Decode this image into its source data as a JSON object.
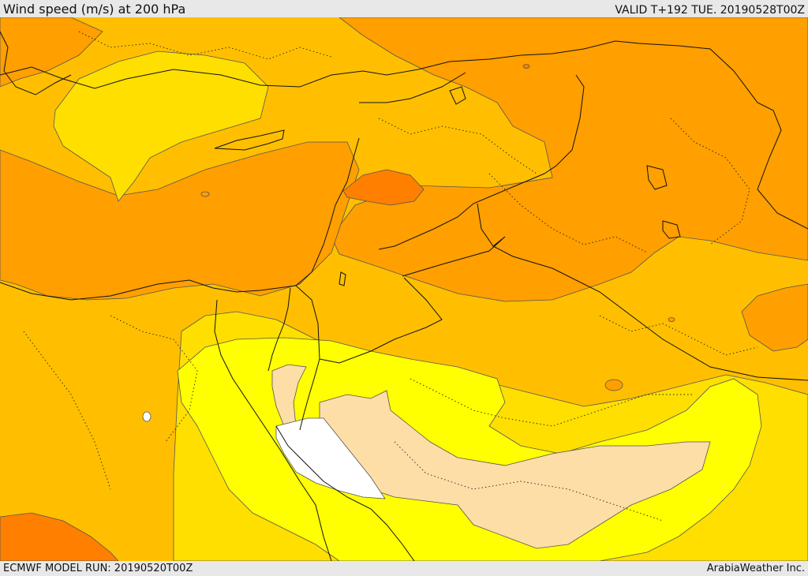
{
  "header": {
    "title": "Wind speed (m/s) at 200 hPa",
    "valid": "VALID T+192 TUE. 20190528T00Z"
  },
  "footer": {
    "model_run": "ECMWF MODEL RUN: 20190520T00Z",
    "credit": "ArabiaWeather Inc."
  },
  "map": {
    "colors": {
      "background": "#e8e8e8",
      "land_border": "#111111",
      "contour": "#555555",
      "wind_white": "#ffffff",
      "wind_peach": "#fddea6",
      "wind_yellow": "#ffff00",
      "wind_gold": "#ffdf00",
      "wind_amber": "#ffbf00",
      "wind_orange": "#ff9f00",
      "wind_deep_orange": "#ff7f00"
    }
  }
}
